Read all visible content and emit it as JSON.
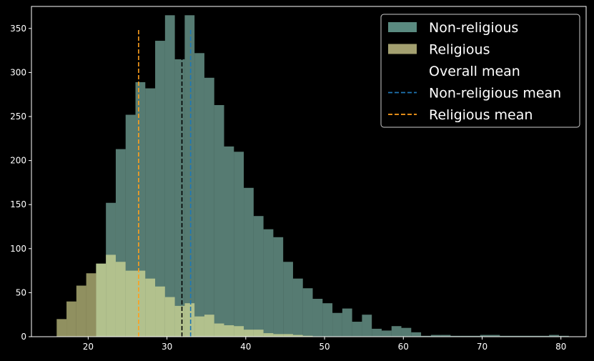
{
  "chart_data": {
    "type": "bar",
    "subtype": "overlapping-histogram",
    "title": "",
    "xlabel": "",
    "ylabel": "",
    "xlim": [
      12.8,
      83.2
    ],
    "ylim": [
      0,
      375
    ],
    "xticks": [
      20,
      30,
      40,
      50,
      60,
      70,
      80
    ],
    "yticks": [
      0,
      50,
      100,
      150,
      200,
      250,
      300,
      350
    ],
    "bin_width": 1.25,
    "grid": false,
    "legend_position": "top-right",
    "series": [
      {
        "name": "Non-religious",
        "color": "#9de0d0",
        "opacity": 0.55,
        "bins": [
          [
            21.0,
            83
          ],
          [
            22.25,
            152
          ],
          [
            23.5,
            213
          ],
          [
            24.75,
            252
          ],
          [
            26.0,
            289
          ],
          [
            27.25,
            282
          ],
          [
            28.5,
            336
          ],
          [
            29.75,
            365
          ],
          [
            31.0,
            315
          ],
          [
            32.25,
            365
          ],
          [
            33.5,
            322
          ],
          [
            34.75,
            294
          ],
          [
            36.0,
            263
          ],
          [
            37.25,
            216
          ],
          [
            38.5,
            210
          ],
          [
            39.75,
            169
          ],
          [
            41.0,
            137
          ],
          [
            42.25,
            122
          ],
          [
            43.5,
            113
          ],
          [
            44.75,
            85
          ],
          [
            46.0,
            66
          ],
          [
            47.25,
            55
          ],
          [
            48.5,
            43
          ],
          [
            49.75,
            38
          ],
          [
            51.0,
            27
          ],
          [
            52.25,
            32
          ],
          [
            53.5,
            17
          ],
          [
            54.75,
            25
          ],
          [
            56.0,
            9
          ],
          [
            57.25,
            7
          ],
          [
            58.5,
            12
          ],
          [
            59.75,
            10
          ],
          [
            61.0,
            5
          ],
          [
            62.25,
            1
          ],
          [
            63.5,
            2
          ],
          [
            64.75,
            2
          ],
          [
            66.0,
            1
          ],
          [
            67.25,
            1
          ],
          [
            68.5,
            1
          ],
          [
            69.75,
            2
          ],
          [
            71.0,
            2
          ],
          [
            72.25,
            1
          ],
          [
            73.5,
            1
          ],
          [
            74.75,
            1
          ],
          [
            76.0,
            1
          ],
          [
            77.25,
            1
          ],
          [
            78.5,
            2
          ],
          [
            79.75,
            1
          ]
        ]
      },
      {
        "name": "Religious",
        "color": "#f0f0a0",
        "opacity": 0.6,
        "bins": [
          [
            16.0,
            20
          ],
          [
            17.25,
            40
          ],
          [
            18.5,
            58
          ],
          [
            19.75,
            72
          ],
          [
            21.0,
            83
          ],
          [
            22.25,
            93
          ],
          [
            23.5,
            85
          ],
          [
            24.75,
            75
          ],
          [
            26.0,
            75
          ],
          [
            27.25,
            66
          ],
          [
            28.5,
            57
          ],
          [
            29.75,
            45
          ],
          [
            31.0,
            35
          ],
          [
            32.25,
            38
          ],
          [
            33.5,
            23
          ],
          [
            34.75,
            25
          ],
          [
            36.0,
            15
          ],
          [
            37.25,
            13
          ],
          [
            38.5,
            12
          ],
          [
            39.75,
            8
          ],
          [
            41.0,
            8
          ],
          [
            42.25,
            4
          ],
          [
            43.5,
            3
          ],
          [
            44.75,
            3
          ],
          [
            46.0,
            2
          ],
          [
            47.25,
            1
          ]
        ]
      }
    ],
    "reference_lines": [
      {
        "name": "Overall mean",
        "x": 31.9,
        "ymin": 0,
        "ymax": 350,
        "color": "#000000",
        "style": "dashed"
      },
      {
        "name": "Non-religious mean",
        "x": 33.0,
        "ymin": 0,
        "ymax": 350,
        "color": "#1f77b4",
        "style": "dashed"
      },
      {
        "name": "Religious mean",
        "x": 26.4,
        "ymin": 0,
        "ymax": 350,
        "color": "#ff9f1c",
        "style": "dashed"
      }
    ],
    "legend": [
      {
        "label": "Non-religious",
        "kind": "patch",
        "color": "#5a8a80"
      },
      {
        "label": "Religious",
        "kind": "patch",
        "color": "#a3a070"
      },
      {
        "label": "Overall mean",
        "kind": "line",
        "color": "#000000"
      },
      {
        "label": "Non-religious mean",
        "kind": "line",
        "color": "#1f77b4"
      },
      {
        "label": "Religious mean",
        "kind": "line",
        "color": "#ff9f1c"
      }
    ]
  }
}
